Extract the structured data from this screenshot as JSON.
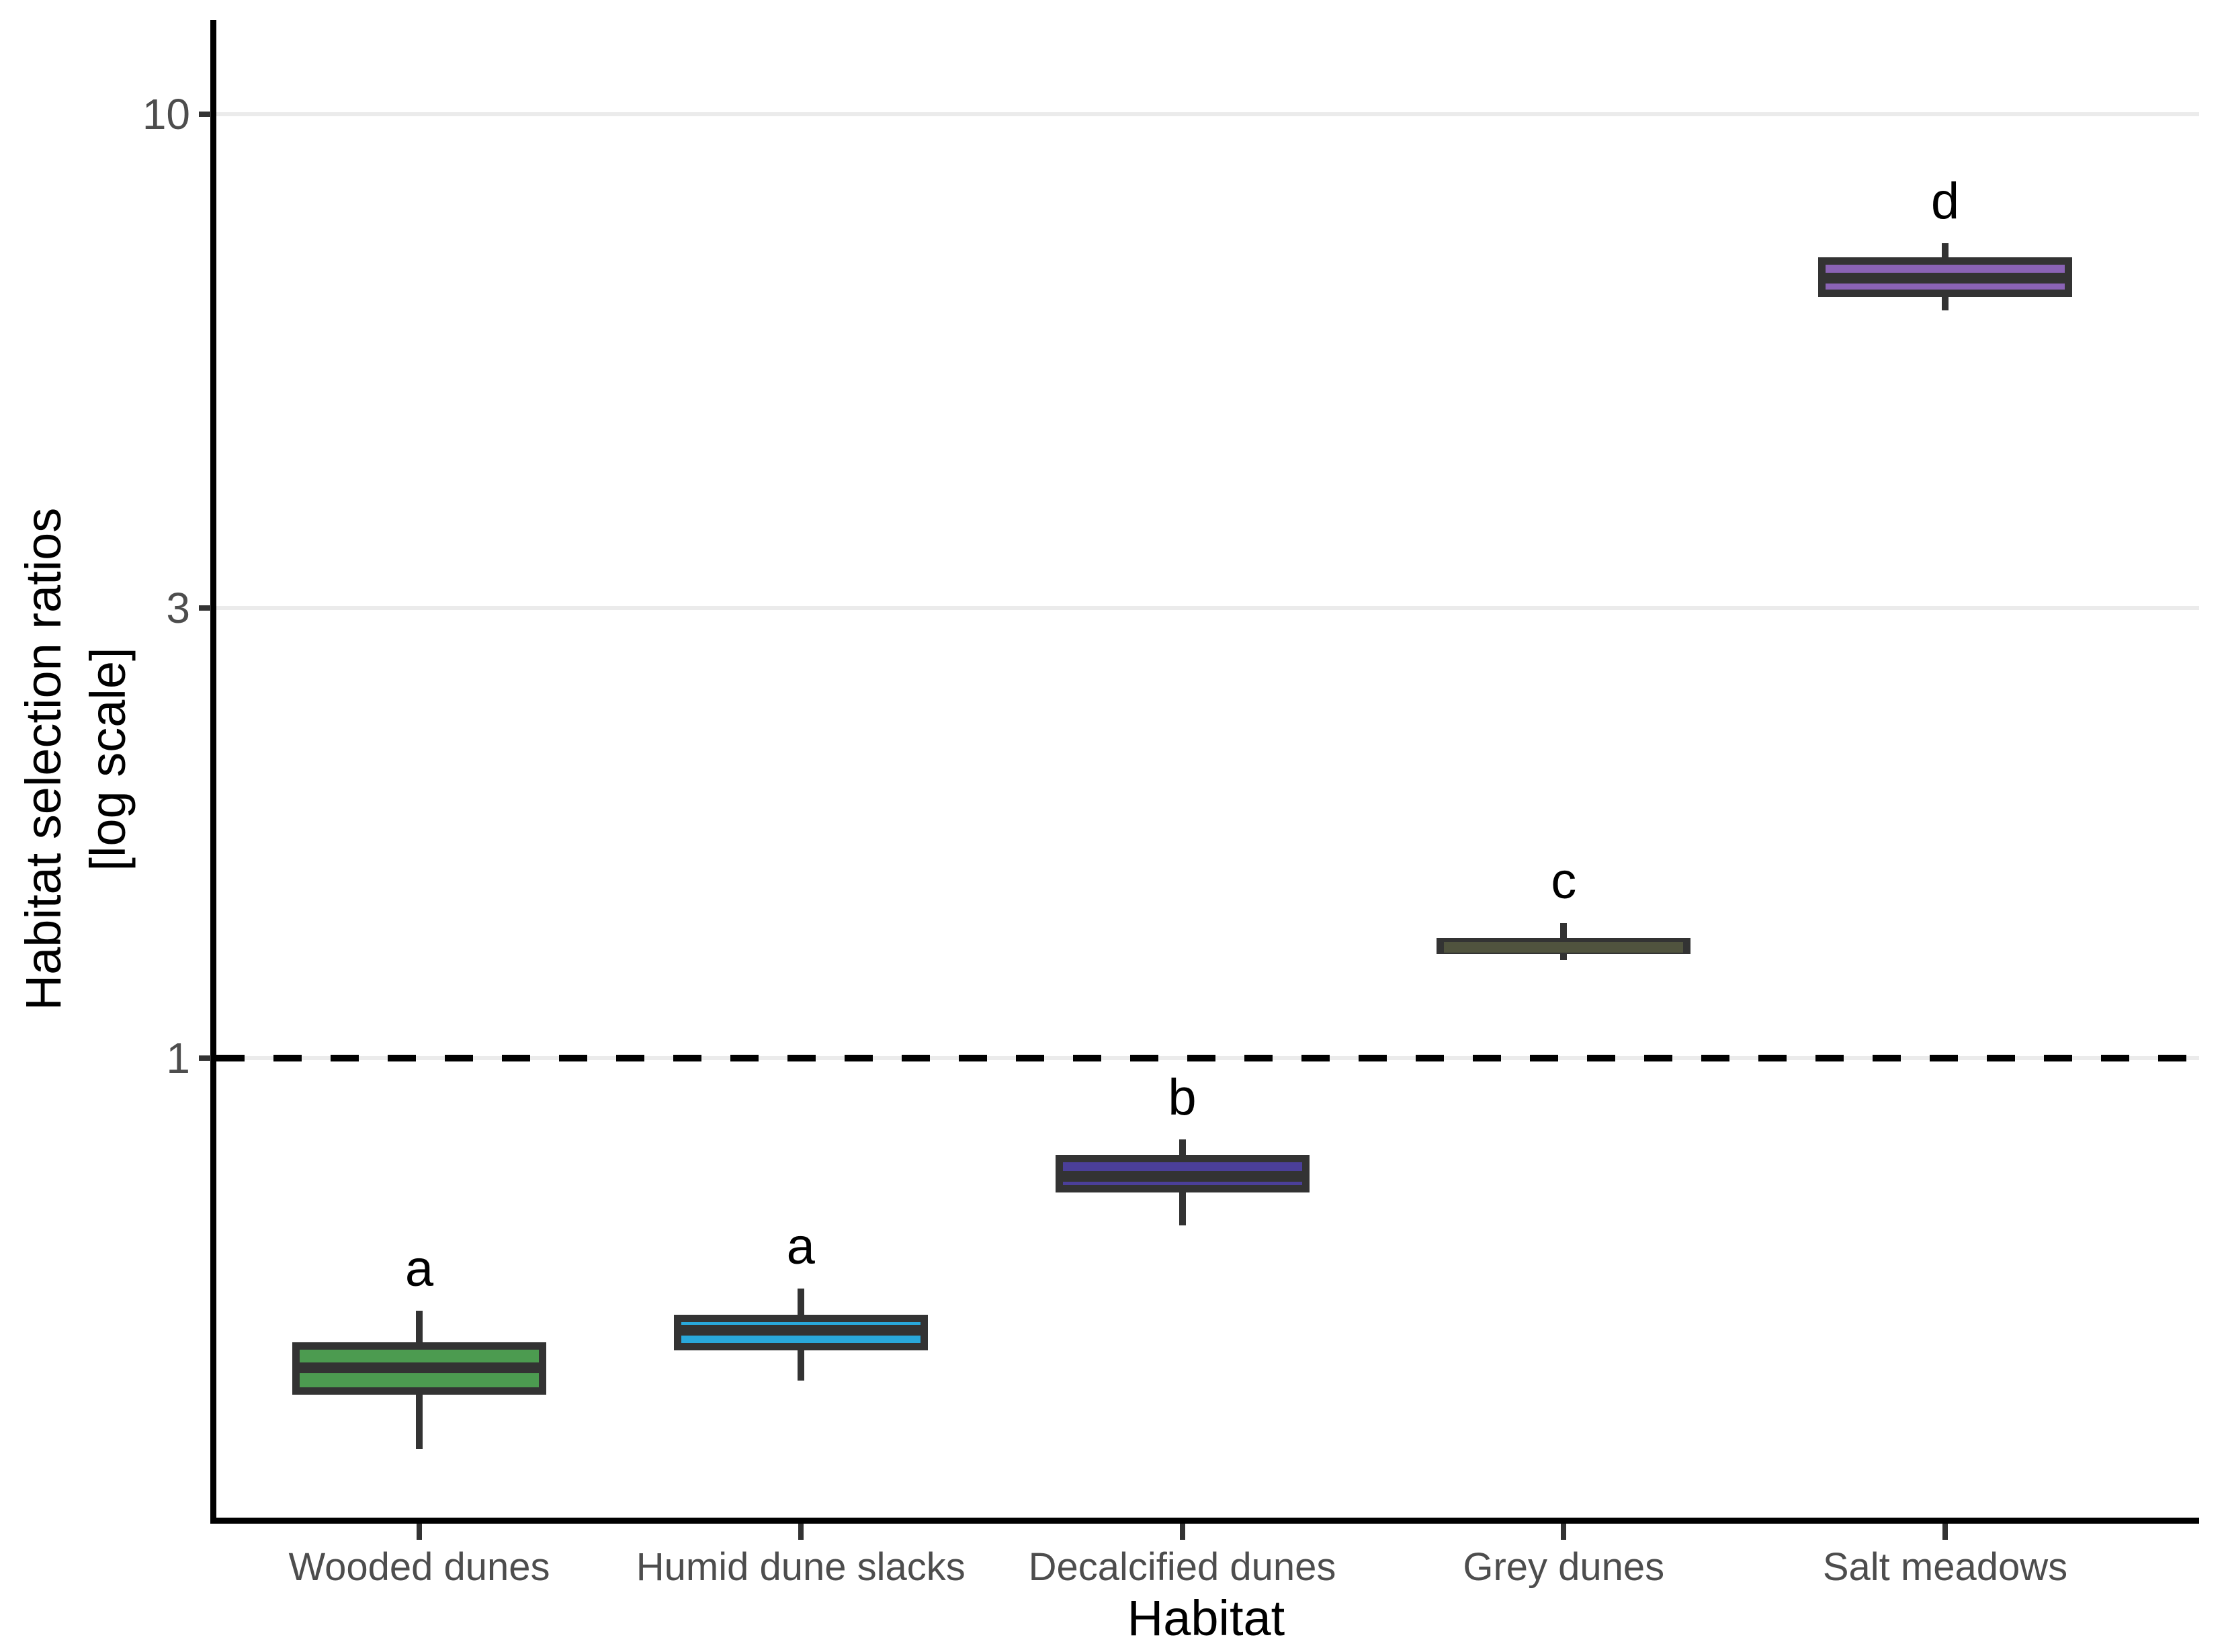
{
  "chart_data": {
    "type": "boxplot",
    "title": "",
    "xlabel": "Habitat",
    "ylabel_line1": "Habitat selection ratios",
    "ylabel_line2": "[log scale]",
    "y_scale": "log10",
    "ylim": [
      0.33,
      12.5
    ],
    "grid": "horizontal-major-only",
    "legend": "none",
    "y_ticks": [
      {
        "value": 1,
        "label": "1"
      },
      {
        "value": 3,
        "label": "3"
      },
      {
        "value": 10,
        "label": "10"
      }
    ],
    "reference_line": {
      "value": 1,
      "style": "dashed",
      "color": "#000000"
    },
    "categories": [
      "Wooded dunes",
      "Humid dune slacks",
      "Decalcified dunes",
      "Grey dunes",
      "Salt meadows"
    ],
    "series": [
      {
        "category": "Wooded dunes",
        "letter": "a",
        "fill": "#4C9B50",
        "median_color": "#333333",
        "whisker_low": 0.385,
        "q1": 0.44,
        "median": 0.47,
        "q3": 0.5,
        "whisker_high": 0.54
      },
      {
        "category": "Humid dune slacks",
        "letter": "a",
        "fill": "#29A8DB",
        "median_color": "#333333",
        "whisker_low": 0.455,
        "q1": 0.49,
        "median": 0.515,
        "q3": 0.535,
        "whisker_high": 0.57
      },
      {
        "category": "Decalcified dunes",
        "letter": "b",
        "fill": "#4B3F99",
        "median_color": "#333333",
        "whisker_low": 0.665,
        "q1": 0.72,
        "median": 0.75,
        "q3": 0.79,
        "whisker_high": 0.82
      },
      {
        "category": "Grey dunes",
        "letter": "c",
        "fill": "#383838",
        "median_color": "#50533E",
        "whisker_low": 1.27,
        "q1": 1.29,
        "median": 1.31,
        "q3": 1.34,
        "whisker_high": 1.39
      },
      {
        "category": "Salt meadows",
        "letter": "d",
        "fill": "#8A63B5",
        "median_color": "#333333",
        "whisker_low": 6.2,
        "q1": 6.4,
        "median": 6.7,
        "q3": 7.05,
        "whisker_high": 7.3
      }
    ],
    "stroke_color": "#333333",
    "grid_color": "#EBEBEB",
    "axis_color": "#000000",
    "tick_label_color": "#4D4D4D",
    "background": "#FFFFFF"
  }
}
